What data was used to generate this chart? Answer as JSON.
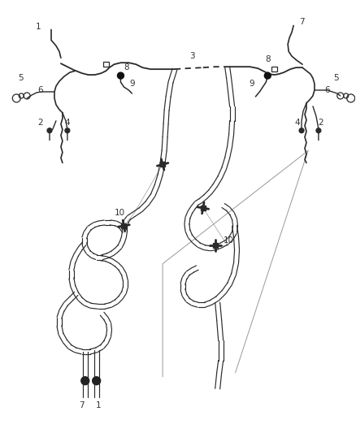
{
  "background_color": "#ffffff",
  "line_color": "#2a2a2a",
  "label_color": "#333333",
  "label_fontsize": 7.5,
  "fig_width": 4.38,
  "fig_height": 5.33,
  "dpi": 100
}
